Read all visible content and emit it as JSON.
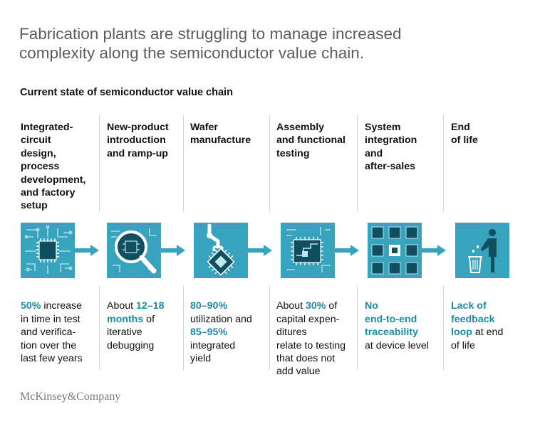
{
  "header": {
    "title": "Fabrication plants are struggling to manage increased complexity along the semiconductor value chain.",
    "subtitle": "Current state of semiconductor value chain"
  },
  "stages": [
    {
      "label": "Integrated-\ncircuit\ndesign,\nprocess\ndevelopment,\nand factory\nsetup",
      "icon": "chip-icon",
      "desc": [
        {
          "text": "50%",
          "hl": true
        },
        {
          "text": " increase\nin time in test\nand verifica-\ntion over the\nlast few years",
          "hl": false
        }
      ]
    },
    {
      "label": "New-product\nintroduction\nand ramp-up",
      "icon": "magnifier-icon",
      "desc": [
        {
          "text": "About ",
          "hl": false
        },
        {
          "text": "12–18\nmonths",
          "hl": true
        },
        {
          "text": " of\niterative\ndebugging",
          "hl": false
        }
      ]
    },
    {
      "label": "Wafer\nmanufacture",
      "icon": "robot-arm-icon",
      "desc": [
        {
          "text": "80–90%",
          "hl": true
        },
        {
          "text": "\nutilization and\n",
          "hl": false
        },
        {
          "text": "85–95%",
          "hl": true
        },
        {
          "text": "\nintegrated\nyield",
          "hl": false
        }
      ]
    },
    {
      "label": "Assembly\nand functional\ntesting",
      "icon": "circuit-test-icon",
      "desc": [
        {
          "text": "About ",
          "hl": false
        },
        {
          "text": "30%",
          "hl": true
        },
        {
          "text": " of\ncapital expen-\nditures\nrelate to testing\nthat does not\nadd value",
          "hl": false
        }
      ]
    },
    {
      "label": "System\nintegration\nand\nafter-sales",
      "icon": "chip-grid-icon",
      "desc": [
        {
          "text": "No\nend-to-end\ntraceability",
          "hl": true
        },
        {
          "text": "\nat device level",
          "hl": false
        }
      ]
    },
    {
      "label": "End\nof life",
      "icon": "trash-person-icon",
      "desc": [
        {
          "text": "Lack of\nfeedback\nloop",
          "hl": true
        },
        {
          "text": " at end\nof life",
          "hl": false
        }
      ]
    }
  ],
  "footer": {
    "logo": "McKinsey&Company"
  },
  "colors": {
    "accent": "#1e8aa3",
    "icon_bg": "#37a3bd",
    "arrow": "#37a3bd"
  }
}
